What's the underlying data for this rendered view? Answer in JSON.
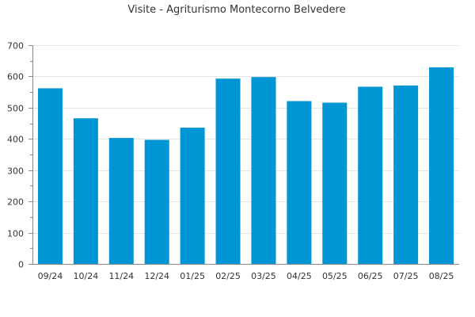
{
  "chart_data": {
    "type": "bar",
    "title": "Visite - Agriturismo Montecorno Belvedere",
    "xlabel": "",
    "ylabel": "",
    "categories": [
      "09/24",
      "10/24",
      "11/24",
      "12/24",
      "01/25",
      "02/25",
      "03/25",
      "04/25",
      "05/25",
      "06/25",
      "07/25",
      "08/25"
    ],
    "values": [
      562,
      466,
      403,
      397,
      436,
      593,
      598,
      521,
      516,
      567,
      571,
      629
    ],
    "ylim": [
      0,
      700
    ],
    "yticks": [
      0,
      100,
      200,
      300,
      400,
      500,
      600,
      700
    ],
    "grid": true,
    "legend": "none",
    "colors": {
      "bar": "#0095d5"
    }
  }
}
